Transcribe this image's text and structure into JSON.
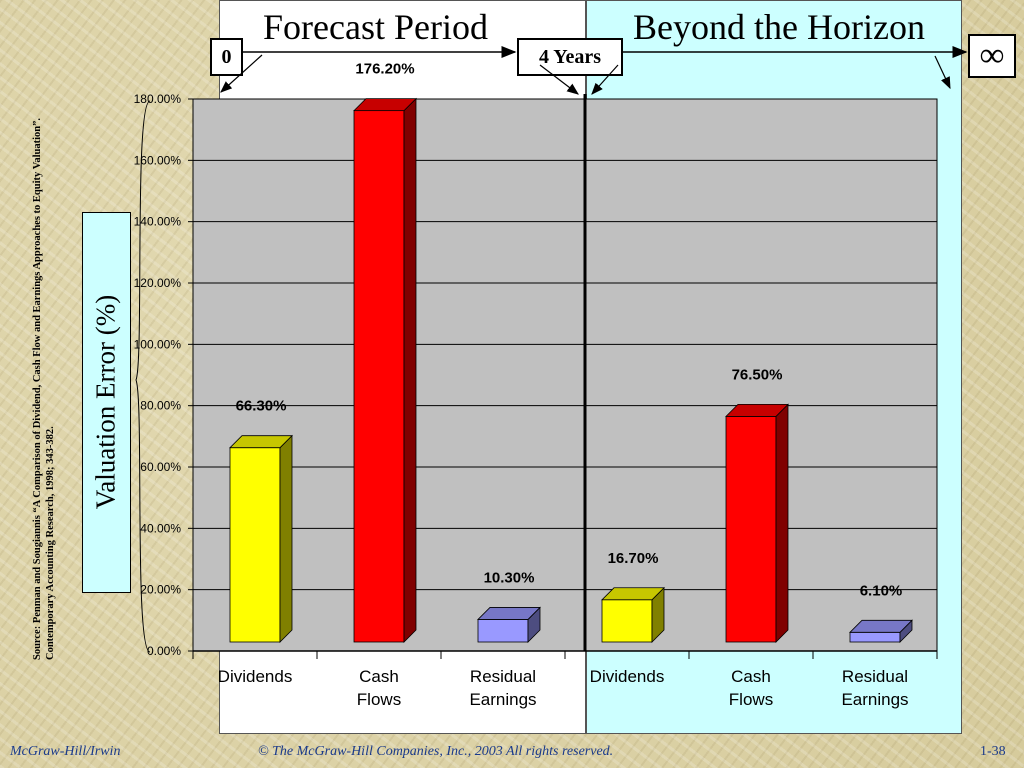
{
  "header": {
    "forecast_period": "Forecast Period",
    "beyond_horizon": "Beyond the Horizon",
    "start_marker": "0",
    "horizon_marker": "4 Years",
    "infinity_marker": "∞"
  },
  "chart_data": {
    "type": "bar",
    "ylabel": "Valuation Error (%)",
    "ylim": [
      0,
      180
    ],
    "yticks": [
      "0.00%",
      "20.00%",
      "40.00%",
      "60.00%",
      "80.00%",
      "100.00%",
      "120.00%",
      "140.00%",
      "160.00%",
      "180.00%"
    ],
    "grid": true,
    "categories": [
      {
        "lines": [
          "Dividends"
        ]
      },
      {
        "lines": [
          "Cash",
          "Flows"
        ]
      },
      {
        "lines": [
          "Residual",
          "Earnings"
        ]
      },
      {
        "lines": [
          "Dividends"
        ]
      },
      {
        "lines": [
          "Cash",
          "Flows"
        ]
      },
      {
        "lines": [
          "Residual",
          "Earnings"
        ]
      }
    ],
    "values": [
      66.3,
      176.2,
      10.3,
      16.7,
      76.5,
      6.1
    ],
    "data_labels": [
      "66.30%",
      "176.20%",
      "10.30%",
      "16.70%",
      "76.50%",
      "6.10%"
    ],
    "bar_colors": [
      "#ffff00",
      "#ff0000",
      "#9999ff",
      "#ffff00",
      "#ff0000",
      "#9999ff"
    ]
  },
  "source": "Source:  Penman and Sougiannis “A Comparison of Dividend, Cash Flow and Earnings Approaches to Equity Valuation”.  Contemporary  Accounting Research, 1998; 343-382.",
  "footer": {
    "publisher": "McGraw-Hill/Irwin",
    "copyright": "© The McGraw-Hill Companies, Inc., 2003  All rights reserved.",
    "slide_number": "1-38"
  }
}
